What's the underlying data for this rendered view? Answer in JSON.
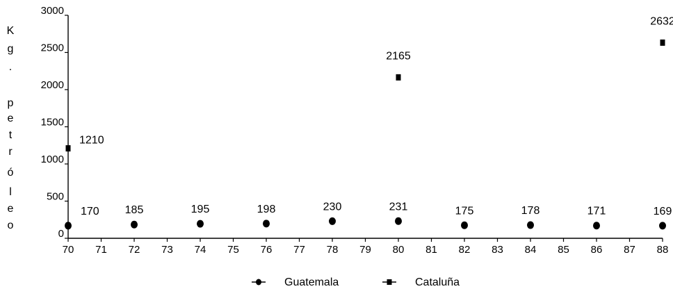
{
  "chart_data": {
    "type": "scatter",
    "title": "",
    "xlabel": "",
    "ylabel_letters": [
      "K",
      "g",
      ".",
      "p",
      "e",
      "t",
      "r",
      "ó",
      "l",
      "e",
      "o"
    ],
    "x_ticks": [
      70,
      71,
      72,
      73,
      74,
      75,
      76,
      77,
      78,
      79,
      80,
      81,
      82,
      83,
      84,
      85,
      86,
      87,
      88
    ],
    "y_ticks": [
      0,
      500,
      1000,
      1500,
      2000,
      2500,
      3000
    ],
    "xlim": [
      70,
      88
    ],
    "ylim": [
      0,
      3000
    ],
    "series": [
      {
        "name": "Guatemala",
        "marker": "circle",
        "x": [
          70,
          72,
          74,
          76,
          78,
          80,
          82,
          84,
          86,
          88
        ],
        "y": [
          170,
          185,
          195,
          198,
          230,
          231,
          175,
          178,
          171,
          169
        ],
        "labels": [
          "170",
          "185",
          "195",
          "198",
          "230",
          "231",
          "175",
          "178",
          "171",
          "169"
        ]
      },
      {
        "name": "Cataluña",
        "marker": "square",
        "x": [
          70,
          80,
          88
        ],
        "y": [
          1210,
          2165,
          2632
        ],
        "labels": [
          "1210",
          "2165",
          "2632"
        ]
      }
    ]
  }
}
